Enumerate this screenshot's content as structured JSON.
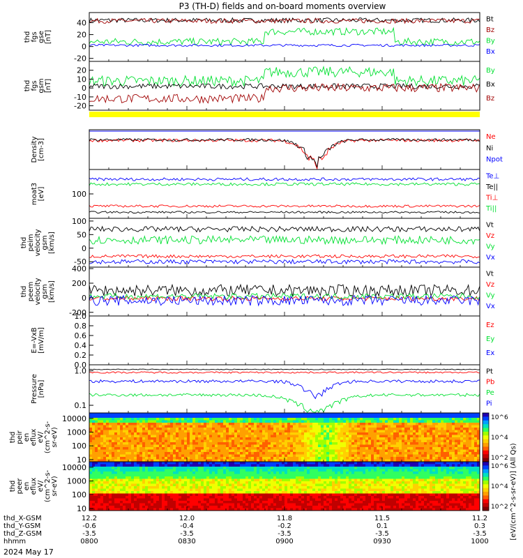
{
  "title": "P3 (TH-D) fields and on-board moments overview",
  "footer": {
    "date": "2024 May 17"
  },
  "colors": {
    "black": "#000000",
    "red": "#ff0000",
    "darkred": "#a00000",
    "green": "#00e030",
    "blue": "#0000ff",
    "yellow": "#ffff00"
  },
  "chart_data": [
    {
      "type": "line",
      "id": "fgs-gse",
      "ylabel": [
        "thd",
        "fgs",
        "gse",
        "[nT]"
      ],
      "ylim": [
        -25,
        57
      ],
      "yticks": [
        "-20",
        "0",
        "20",
        "40"
      ],
      "ytickvals": [
        -20,
        0,
        20,
        40
      ],
      "series": [
        {
          "name": "Bt",
          "color": "#000000",
          "base": 44,
          "noise": 4
        },
        {
          "name": "Bz",
          "color": "#a00000",
          "base": 43,
          "noise": 4
        },
        {
          "name": "By",
          "color": "#00e030",
          "base": 8,
          "noise": 6,
          "step": {
            "from": 0.45,
            "to": 0.78,
            "value": 25
          }
        },
        {
          "name": "Bx",
          "color": "#0000ff",
          "base": 2,
          "noise": 2
        }
      ]
    },
    {
      "type": "line",
      "id": "fgs-gsm",
      "ylabel": [
        "thd",
        "fgs",
        "gsm",
        "[nT]"
      ],
      "ylim": [
        -25,
        30
      ],
      "yticks": [
        "-20",
        "-10",
        "0",
        "10",
        "20"
      ],
      "ytickvals": [
        -20,
        -10,
        0,
        10,
        20
      ],
      "series": [
        {
          "name": "By",
          "color": "#00e030",
          "base": 8,
          "noise": 6,
          "step": {
            "from": 0.45,
            "to": 0.78,
            "value": 18
          }
        },
        {
          "name": "Bx",
          "color": "#000000",
          "base": 2,
          "noise": 3
        },
        {
          "name": "Bz",
          "color": "#a00000",
          "base": -12,
          "noise": 5,
          "step": {
            "from": 0.45,
            "to": 1.0,
            "value": 0
          }
        }
      ]
    },
    {
      "type": "line",
      "id": "density",
      "scale": "log",
      "ylabel": [
        "Density",
        "[cm-3]"
      ],
      "ylim": [
        0.05,
        1.0
      ],
      "yticks": [],
      "ytickvals": [],
      "series": [
        {
          "name": "Ne",
          "color": "#ff0000",
          "base": 0.45,
          "noise": 0.05,
          "dip": {
            "at": 0.58,
            "width": 0.05,
            "value": 0.08
          }
        },
        {
          "name": "Ni",
          "color": "#000000",
          "base": 0.47,
          "noise": 0.05,
          "dip": {
            "at": 0.58,
            "width": 0.05,
            "value": 0.09
          }
        },
        {
          "name": "Npot",
          "color": "#0000ff",
          "base": 0.9,
          "noise": 0.0
        }
      ]
    },
    {
      "type": "line",
      "id": "temperature",
      "ylabel": [
        "moat3",
        "[eV]"
      ],
      "ylim": [
        0,
        200
      ],
      "yticks": [
        "100"
      ],
      "ytickvals": [
        100
      ],
      "series": [
        {
          "name": "Te⊥",
          "color": "#0000ff",
          "base": 160,
          "noise": 6
        },
        {
          "name": "Te||",
          "color": "#000000",
          "base": 25,
          "noise": 4
        },
        {
          "name": "Ti⊥",
          "color": "#ff0000",
          "base": 50,
          "noise": 5
        },
        {
          "name": "Ti||",
          "color": "#00e030",
          "base": 140,
          "noise": 6
        }
      ]
    },
    {
      "type": "line",
      "id": "peim-velocity",
      "ylabel": [
        "thd",
        "peim",
        "velocity",
        "gsm",
        "[km/s]"
      ],
      "ylim": [
        -70,
        110
      ],
      "yticks": [
        "-50",
        "0",
        "50",
        "100"
      ],
      "ytickvals": [
        -50,
        0,
        50,
        100
      ],
      "series": [
        {
          "name": "Vt",
          "color": "#000000",
          "base": 70,
          "noise": 10
        },
        {
          "name": "Vz",
          "color": "#ff0000",
          "base": -30,
          "noise": 6
        },
        {
          "name": "Vy",
          "color": "#00e030",
          "base": 30,
          "noise": 15
        },
        {
          "name": "Vx",
          "color": "#0000ff",
          "base": -50,
          "noise": 8
        }
      ]
    },
    {
      "type": "line",
      "id": "peem-velocity",
      "ylabel": [
        "thd",
        "peem",
        "velocity",
        "gsm",
        "[km/s]"
      ],
      "ylim": [
        -250,
        420
      ],
      "yticks": [
        "-200",
        "0",
        "200",
        "400"
      ],
      "ytickvals": [
        -200,
        0,
        200,
        400
      ],
      "series": [
        {
          "name": "Vt",
          "color": "#000000",
          "base": 100,
          "noise": 80
        },
        {
          "name": "Vz",
          "color": "#ff0000",
          "base": -10,
          "noise": 30
        },
        {
          "name": "Vy",
          "color": "#00e030",
          "base": 20,
          "noise": 40
        },
        {
          "name": "Vx",
          "color": "#0000ff",
          "base": -40,
          "noise": 70
        }
      ]
    },
    {
      "type": "line",
      "id": "efield",
      "ylabel": [
        "E=-VxB",
        "[mV/m]"
      ],
      "ylim": [
        0,
        1.0
      ],
      "yticks": [
        "0.0",
        "0.2",
        "0.4",
        "0.6",
        "0.8",
        "1.0"
      ],
      "ytickvals": [
        0,
        0.2,
        0.4,
        0.6,
        0.8,
        1.0
      ],
      "series": [
        {
          "name": "Ez",
          "color": "#ff0000",
          "base": null,
          "noise": 0
        },
        {
          "name": "Ey",
          "color": "#00e030",
          "base": null,
          "noise": 0
        },
        {
          "name": "Ex",
          "color": "#0000ff",
          "base": null,
          "noise": 0
        }
      ]
    },
    {
      "type": "line",
      "id": "pressure",
      "scale": "log",
      "ylabel": [
        "Pressure",
        "[nPa]"
      ],
      "ylim": [
        0.06,
        1.5
      ],
      "yticks": [
        "0.1",
        "1.0"
      ],
      "ytickvals": [
        0.1,
        1.0
      ],
      "series": [
        {
          "name": "Pt",
          "color": "#000000",
          "base": 1.1,
          "noise": 0.03
        },
        {
          "name": "Pb",
          "color": "#ff0000",
          "base": 0.9,
          "noise": 0.05
        },
        {
          "name": "Pe",
          "color": "#00e030",
          "base": 0.2,
          "noise": 0.02,
          "dip": {
            "at": 0.58,
            "width": 0.08,
            "value": 0.07
          }
        },
        {
          "name": "Pi",
          "color": "#0000ff",
          "base": 0.5,
          "noise": 0.05,
          "dip": {
            "at": 0.58,
            "width": 0.05,
            "value": 0.2
          }
        }
      ]
    },
    {
      "type": "heatmap",
      "id": "peir-eflux",
      "ylabel": [
        "thd",
        "peir",
        "en",
        "eflux",
        "eV/",
        "(cm^2-s-",
        "sr-eV)"
      ],
      "yticks": [
        "10",
        "100",
        "1000",
        "10000"
      ],
      "ytickvals": [
        10,
        100,
        1000,
        10000
      ],
      "ylim": [
        7,
        25000
      ],
      "colorbar": {
        "ticks": [
          "10^2",
          "10^4",
          "10^6"
        ]
      }
    },
    {
      "type": "heatmap",
      "id": "peer-eflux",
      "ylabel": [
        "thd",
        "peer",
        "en",
        "eflux",
        "eV/",
        "(cm^2-s-",
        "sr-eV)"
      ],
      "yticks": [
        "10",
        "100",
        "1000",
        "10000"
      ],
      "ytickvals": [
        10,
        100,
        1000,
        10000
      ],
      "ylim": [
        7,
        25000
      ],
      "colorbar": {
        "ticks": [
          "10^2",
          "10^4",
          "10^6"
        ]
      }
    }
  ],
  "xaxis": {
    "rows": [
      {
        "label": "thd_X-GSM",
        "values": [
          "12.2",
          "12.0",
          "11.8",
          "11.5",
          "11.2"
        ]
      },
      {
        "label": "thd_Y-GSM",
        "values": [
          "-0.6",
          "-0.4",
          "-0.2",
          "0.1",
          "0.3"
        ]
      },
      {
        "label": "thd_Z-GSM",
        "values": [
          "-3.5",
          "-3.5",
          "-3.5",
          "-3.5",
          "-3.5"
        ]
      },
      {
        "label": "hhmm",
        "values": [
          "0800",
          "0830",
          "0900",
          "0930",
          "1000"
        ]
      }
    ]
  },
  "colorbar_label": "[eV/(cm^2-s-sr-eV)] (All Qs)"
}
